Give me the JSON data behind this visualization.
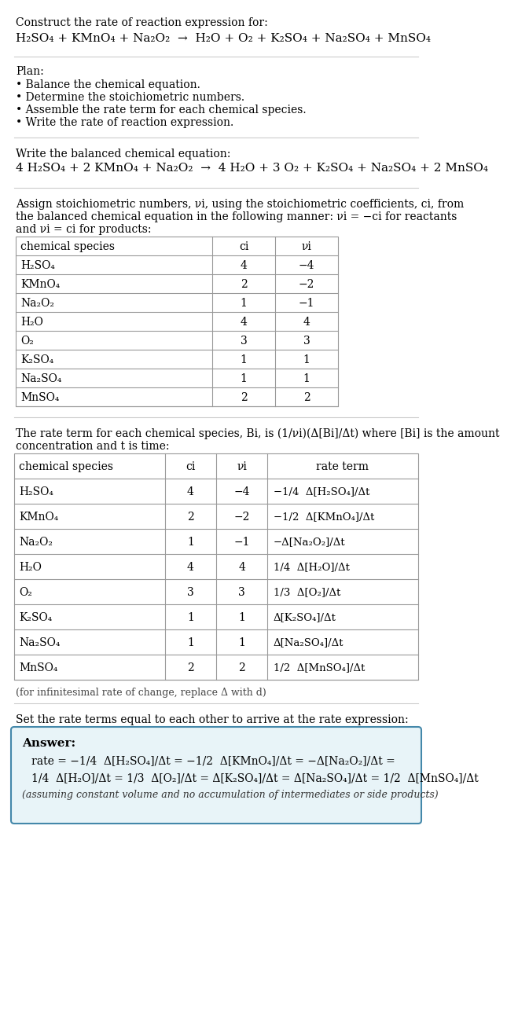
{
  "title_line1": "Construct the rate of reaction expression for:",
  "title_chem": "H₂SO₄ + KMnO₄ + Na₂O₂  →  H₂O + O₂ + K₂SO₄ + Na₂SO₄ + MnSO₄",
  "plan_header": "Plan:",
  "plan_items": [
    "• Balance the chemical equation.",
    "• Determine the stoichiometric numbers.",
    "• Assemble the rate term for each chemical species.",
    "• Write the rate of reaction expression."
  ],
  "balanced_header": "Write the balanced chemical equation:",
  "balanced_chem": "4 H₂SO₄ + 2 KMnO₄ + Na₂O₂  →  4 H₂O + 3 O₂ + K₂SO₄ + Na₂SO₄ + 2 MnSO₄",
  "stoich_text1": "Assign stoichiometric numbers, νi, using the stoichiometric coefficients, ci, from",
  "stoich_text2": "the balanced chemical equation in the following manner: νi = −ci for reactants",
  "stoich_text3": "and νi = ci for products:",
  "table1_headers": [
    "chemical species",
    "ci",
    "νi"
  ],
  "table1_rows": [
    [
      "H₂SO₄",
      "4",
      "−4"
    ],
    [
      "KMnO₄",
      "2",
      "−2"
    ],
    [
      "Na₂O₂",
      "1",
      "−1"
    ],
    [
      "H₂O",
      "4",
      "4"
    ],
    [
      "O₂",
      "3",
      "3"
    ],
    [
      "K₂SO₄",
      "1",
      "1"
    ],
    [
      "Na₂SO₄",
      "1",
      "1"
    ],
    [
      "MnSO₄",
      "2",
      "2"
    ]
  ],
  "rate_text1": "The rate term for each chemical species, Bi, is (1/νi)(Δ[Bi]/Δt) where [Bi] is the amount",
  "rate_text2": "concentration and t is time:",
  "table2_headers": [
    "chemical species",
    "ci",
    "νi",
    "rate term"
  ],
  "table2_rows": [
    [
      "H₂SO₄",
      "4",
      "−4",
      "−1/4  Δ[H₂SO₄]/Δt"
    ],
    [
      "KMnO₄",
      "2",
      "−2",
      "−1/2  Δ[KMnO₄]/Δt"
    ],
    [
      "Na₂O₂",
      "1",
      "−1",
      "−Δ[Na₂O₂]/Δt"
    ],
    [
      "H₂O",
      "4",
      "4",
      "1/4  Δ[H₂O]/Δt"
    ],
    [
      "O₂",
      "3",
      "3",
      "1/3  Δ[O₂]/Δt"
    ],
    [
      "K₂SO₄",
      "1",
      "1",
      "Δ[K₂SO₄]/Δt"
    ],
    [
      "Na₂SO₄",
      "1",
      "1",
      "Δ[Na₂SO₄]/Δt"
    ],
    [
      "MnSO₄",
      "2",
      "2",
      "1/2  Δ[MnSO₄]/Δt"
    ]
  ],
  "infinitesimal_note": "(for infinitesimal rate of change, replace Δ with d)",
  "set_rate_text": "Set the rate terms equal to each other to arrive at the rate expression:",
  "answer_label": "Answer:",
  "answer_rate1": "rate = −1/4  Δ[H₂SO₄]/Δt = −1/2  Δ[KMnO₄]/Δt = −Δ[Na₂O₂]/Δt =",
  "answer_rate2": "1/4  Δ[H₂O]/Δt = 1/3  Δ[O₂]/Δt = Δ[K₂SO₄]/Δt = Δ[Na₂SO₄]/Δt = 1/2  Δ[MnSO₄]/Δt",
  "answer_note": "(assuming constant volume and no accumulation of intermediates or side products)",
  "bg_color": "#ffffff",
  "line_color": "#cccccc",
  "table_border_color": "#999999",
  "answer_bg": "#e8f4f8",
  "answer_border": "#4488aa"
}
